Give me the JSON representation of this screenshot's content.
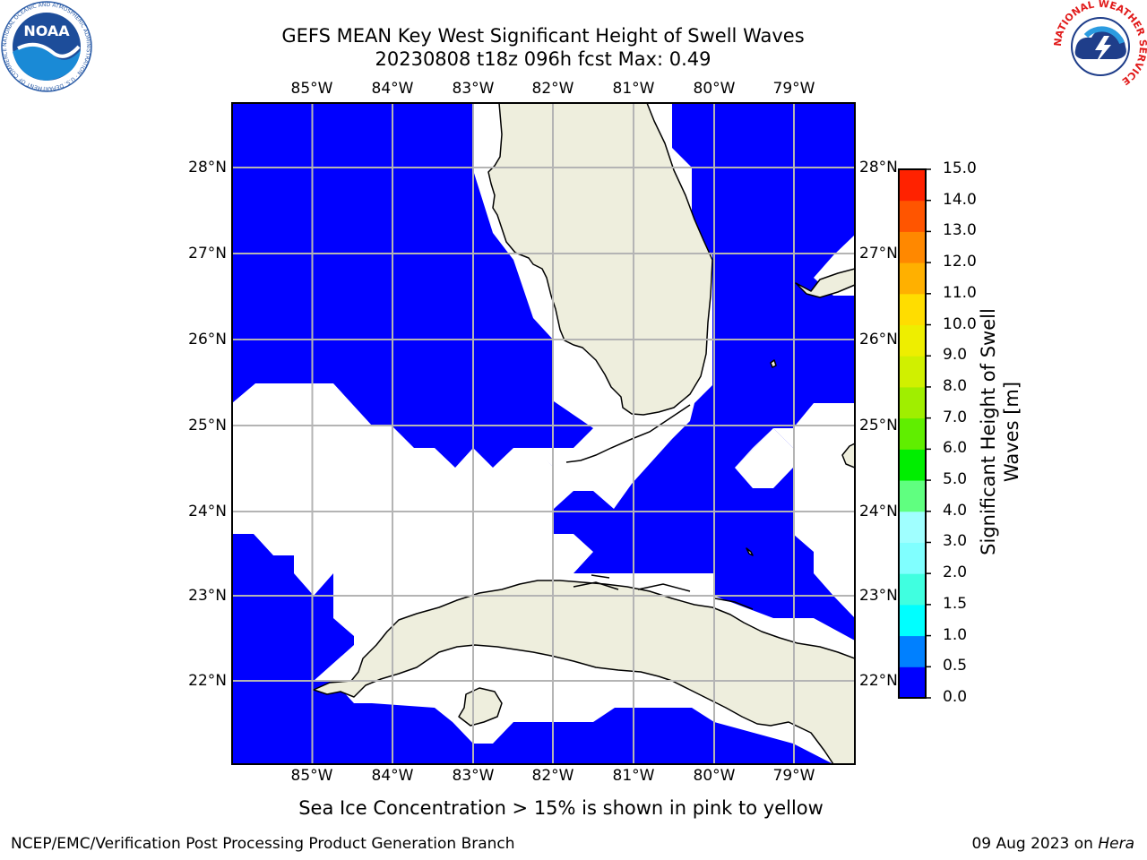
{
  "title": {
    "line1": "GEFS MEAN Key West Significant Height of Swell Waves",
    "line2": "20230808 t18z 096h fcst   Max: 0.49"
  },
  "map": {
    "lon_labels": [
      "85°W",
      "84°W",
      "83°W",
      "82°W",
      "81°W",
      "80°W",
      "79°W"
    ],
    "lat_labels": [
      "28°N",
      "27°N",
      "26°N",
      "25°N",
      "24°N",
      "23°N",
      "22°N"
    ],
    "ocean_color": "#0000ff",
    "land_color": "#eeeedd"
  },
  "colorbar": {
    "label": "Significant Height of Swell Waves [m]",
    "ticks": [
      "0.0",
      "0.5",
      "1.0",
      "1.5",
      "2.0",
      "3.0",
      "4.0",
      "5.0",
      "6.0",
      "7.0",
      "8.0",
      "9.0",
      "10.0",
      "11.0",
      "12.0",
      "13.0",
      "14.0",
      "15.0"
    ],
    "colors": [
      "#0000ff",
      "#0080ff",
      "#00ffff",
      "#40ffe0",
      "#80ffff",
      "#a0ffff",
      "#60ff80",
      "#00ee00",
      "#60ee00",
      "#a0ee00",
      "#d0f000",
      "#eeee00",
      "#ffdd00",
      "#ffb000",
      "#ff8800",
      "#ff5500",
      "#ff2200",
      "#ff0000"
    ]
  },
  "note": "Sea Ice Concentration > 15% is shown in pink to yellow",
  "footer": {
    "left": "NCEP/EMC/Verification Post Processing Product Generation Branch",
    "right_date": "09 Aug 2023 on",
    "right_machine": "Hera"
  },
  "logos": {
    "noaa_text": "NOAA",
    "noaa_ring": "NATIONAL OCEANIC AND ATMOSPHERIC ADMINISTRATION · U.S. DEPARTMENT OF COMMERCE",
    "nws_ring": "NATIONAL WEATHER SERVICE"
  }
}
